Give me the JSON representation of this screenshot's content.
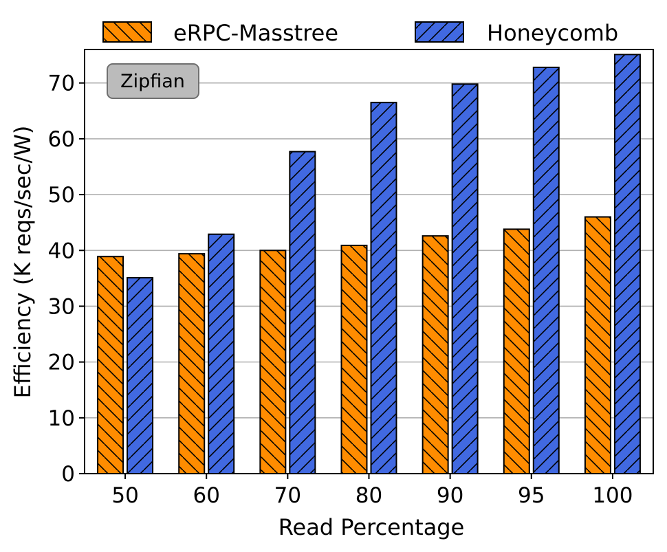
{
  "chart_data": {
    "type": "bar",
    "title": "",
    "xlabel": "Read Percentage",
    "ylabel": "Efficiency (K reqs/sec/W)",
    "categories": [
      "50",
      "60",
      "70",
      "80",
      "90",
      "95",
      "100"
    ],
    "ylim": [
      0,
      76
    ],
    "yticks": [
      0,
      10,
      20,
      30,
      40,
      50,
      60,
      70
    ],
    "grid": "horizontal",
    "legend_position": "top, outside plot",
    "annotation": "Zipfian",
    "series": [
      {
        "name": "eRPC-Masstree",
        "color": "#FF8C00",
        "hatch": "backslash",
        "values": [
          38.9,
          39.4,
          40.0,
          40.9,
          42.6,
          43.8,
          46.0
        ]
      },
      {
        "name": "Honeycomb",
        "color": "#4169E1",
        "hatch": "forward-slash",
        "values": [
          35.1,
          42.9,
          57.7,
          66.5,
          69.8,
          72.8,
          75.1
        ]
      }
    ]
  }
}
